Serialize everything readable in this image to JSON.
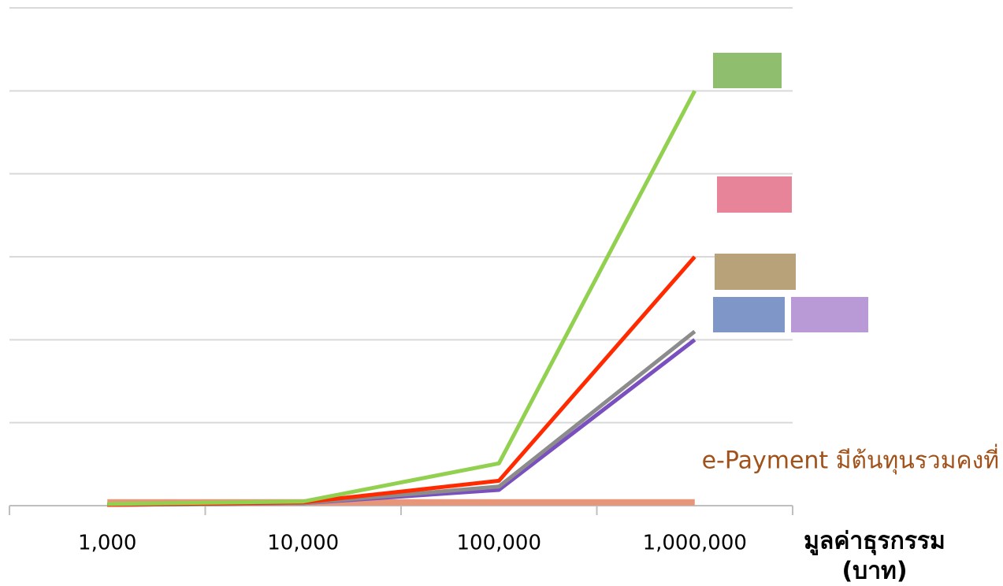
{
  "chart_data": {
    "type": "line",
    "categories": [
      "1,000",
      "10,000",
      "100,000",
      "1,000,000"
    ],
    "series": [
      {
        "color": "#e8967a",
        "values": [
          0.04,
          0.04,
          0.04,
          0.04
        ]
      },
      {
        "color": "#7a4fbf",
        "values": [
          0.01,
          0.03,
          0.19,
          2.0
        ]
      },
      {
        "color": "#8c8c8c",
        "values": [
          0.01,
          0.03,
          0.23,
          2.1
        ]
      },
      {
        "color": "#ff2a00",
        "values": [
          0.01,
          0.04,
          0.3,
          3.0
        ]
      },
      {
        "color": "#92d050",
        "values": [
          0.02,
          0.05,
          0.51,
          5.0
        ]
      }
    ],
    "ylim": [
      0,
      6
    ],
    "yticks": [
      0,
      1,
      2,
      3,
      4,
      5,
      6
    ],
    "grid": true,
    "annotation": "e-Payment มีต้นทุนรวมคงที่",
    "annotation_color": "#a0521a",
    "x_label": [
      "มูลค่าธุรกรรม",
      "(บาท)"
    ]
  }
}
